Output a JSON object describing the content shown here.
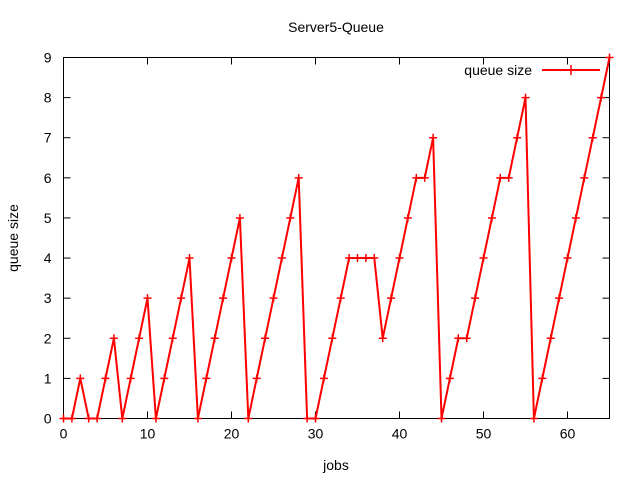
{
  "chart_data": {
    "type": "line",
    "title": "Server5-Queue",
    "xlabel": "jobs",
    "ylabel": "queue size",
    "xlim": [
      0,
      65
    ],
    "ylim": [
      0,
      9
    ],
    "xticks": [
      0,
      10,
      20,
      30,
      40,
      50,
      60
    ],
    "yticks": [
      0,
      1,
      2,
      3,
      4,
      5,
      6,
      7,
      8,
      9
    ],
    "grid": false,
    "legend_position": "top-right",
    "series": [
      {
        "name": "queue size",
        "color": "#ff0000",
        "marker": "plus",
        "x": [
          0,
          1,
          2,
          3,
          4,
          5,
          6,
          7,
          8,
          9,
          10,
          11,
          12,
          13,
          14,
          15,
          16,
          17,
          18,
          19,
          20,
          21,
          22,
          23,
          24,
          25,
          26,
          27,
          28,
          29,
          30,
          31,
          32,
          33,
          34,
          35,
          36,
          37,
          38,
          39,
          40,
          41,
          42,
          43,
          44,
          45,
          46,
          47,
          48,
          49,
          50,
          51,
          52,
          53,
          54,
          55,
          56,
          57,
          58,
          59,
          60,
          61,
          62,
          63,
          64,
          65
        ],
        "values": [
          0,
          0,
          1,
          0,
          0,
          1,
          2,
          0,
          1,
          2,
          3,
          0,
          1,
          2,
          3,
          4,
          0,
          1,
          2,
          3,
          4,
          5,
          0,
          1,
          2,
          3,
          4,
          5,
          6,
          0,
          0,
          1,
          2,
          3,
          4,
          4,
          4,
          4,
          2,
          3,
          4,
          5,
          6,
          6,
          7,
          0,
          1,
          2,
          2,
          3,
          4,
          5,
          6,
          6,
          7,
          8,
          0,
          1,
          2,
          3,
          4,
          5,
          6,
          7,
          8,
          9
        ]
      }
    ]
  }
}
